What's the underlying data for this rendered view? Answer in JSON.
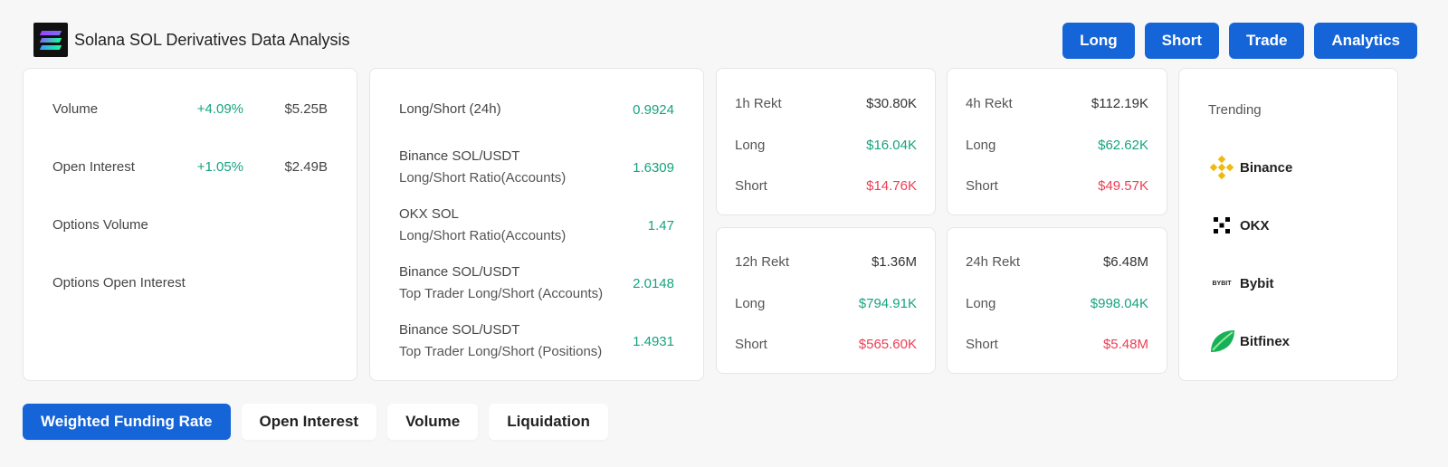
{
  "header": {
    "title": "Solana SOL Derivatives Data Analysis"
  },
  "top_buttons": [
    "Long",
    "Short",
    "Trade",
    "Analytics"
  ],
  "overview": {
    "rows": [
      {
        "label": "Volume",
        "change": "+4.09%",
        "value": "$5.25B"
      },
      {
        "label": "Open Interest",
        "change": "+1.05%",
        "value": "$2.49B"
      },
      {
        "label": "Options Volume"
      },
      {
        "label": "Options Open Interest"
      }
    ]
  },
  "long_short": {
    "rows": [
      {
        "label": "Long/Short (24h)",
        "sub": "",
        "value": "0.9924"
      },
      {
        "label": "Binance SOL/USDT",
        "sub": "Long/Short Ratio(Accounts)",
        "value": "1.6309"
      },
      {
        "label": "OKX SOL",
        "sub": "Long/Short Ratio(Accounts)",
        "value": "1.47"
      },
      {
        "label": "Binance SOL/USDT",
        "sub": "Top Trader Long/Short (Accounts)",
        "value": "2.0148"
      },
      {
        "label": "Binance SOL/USDT",
        "sub": "Top Trader Long/Short (Positions)",
        "value": "1.4931"
      }
    ]
  },
  "rekt": [
    {
      "title": "1h Rekt",
      "total": "$30.80K",
      "long_label": "Long",
      "long": "$16.04K",
      "short_label": "Short",
      "short": "$14.76K"
    },
    {
      "title": "4h Rekt",
      "total": "$112.19K",
      "long_label": "Long",
      "long": "$62.62K",
      "short_label": "Short",
      "short": "$49.57K"
    },
    {
      "title": "12h Rekt",
      "total": "$1.36M",
      "long_label": "Long",
      "long": "$794.91K",
      "short_label": "Short",
      "short": "$565.60K"
    },
    {
      "title": "24h Rekt",
      "total": "$6.48M",
      "long_label": "Long",
      "long": "$998.04K",
      "short_label": "Short",
      "short": "$5.48M"
    }
  ],
  "trending": {
    "title": "Trending",
    "exchanges": [
      {
        "name": "Binance",
        "icon": "binance-icon",
        "color": "#f0b90b"
      },
      {
        "name": "OKX",
        "icon": "okx-icon",
        "color": "#000000"
      },
      {
        "name": "Bybit",
        "icon": "bybit-icon",
        "icon_text": "BYBIT",
        "color": "#f7a600"
      },
      {
        "name": "Bitfinex",
        "icon": "bitfinex-icon",
        "color": "#16b157"
      }
    ]
  },
  "tabs": [
    "Weighted Funding Rate",
    "Open Interest",
    "Volume",
    "Liquidation"
  ],
  "colors": {
    "accent": "#1565d8",
    "positive": "#16a37f",
    "negative": "#ee3e55"
  }
}
